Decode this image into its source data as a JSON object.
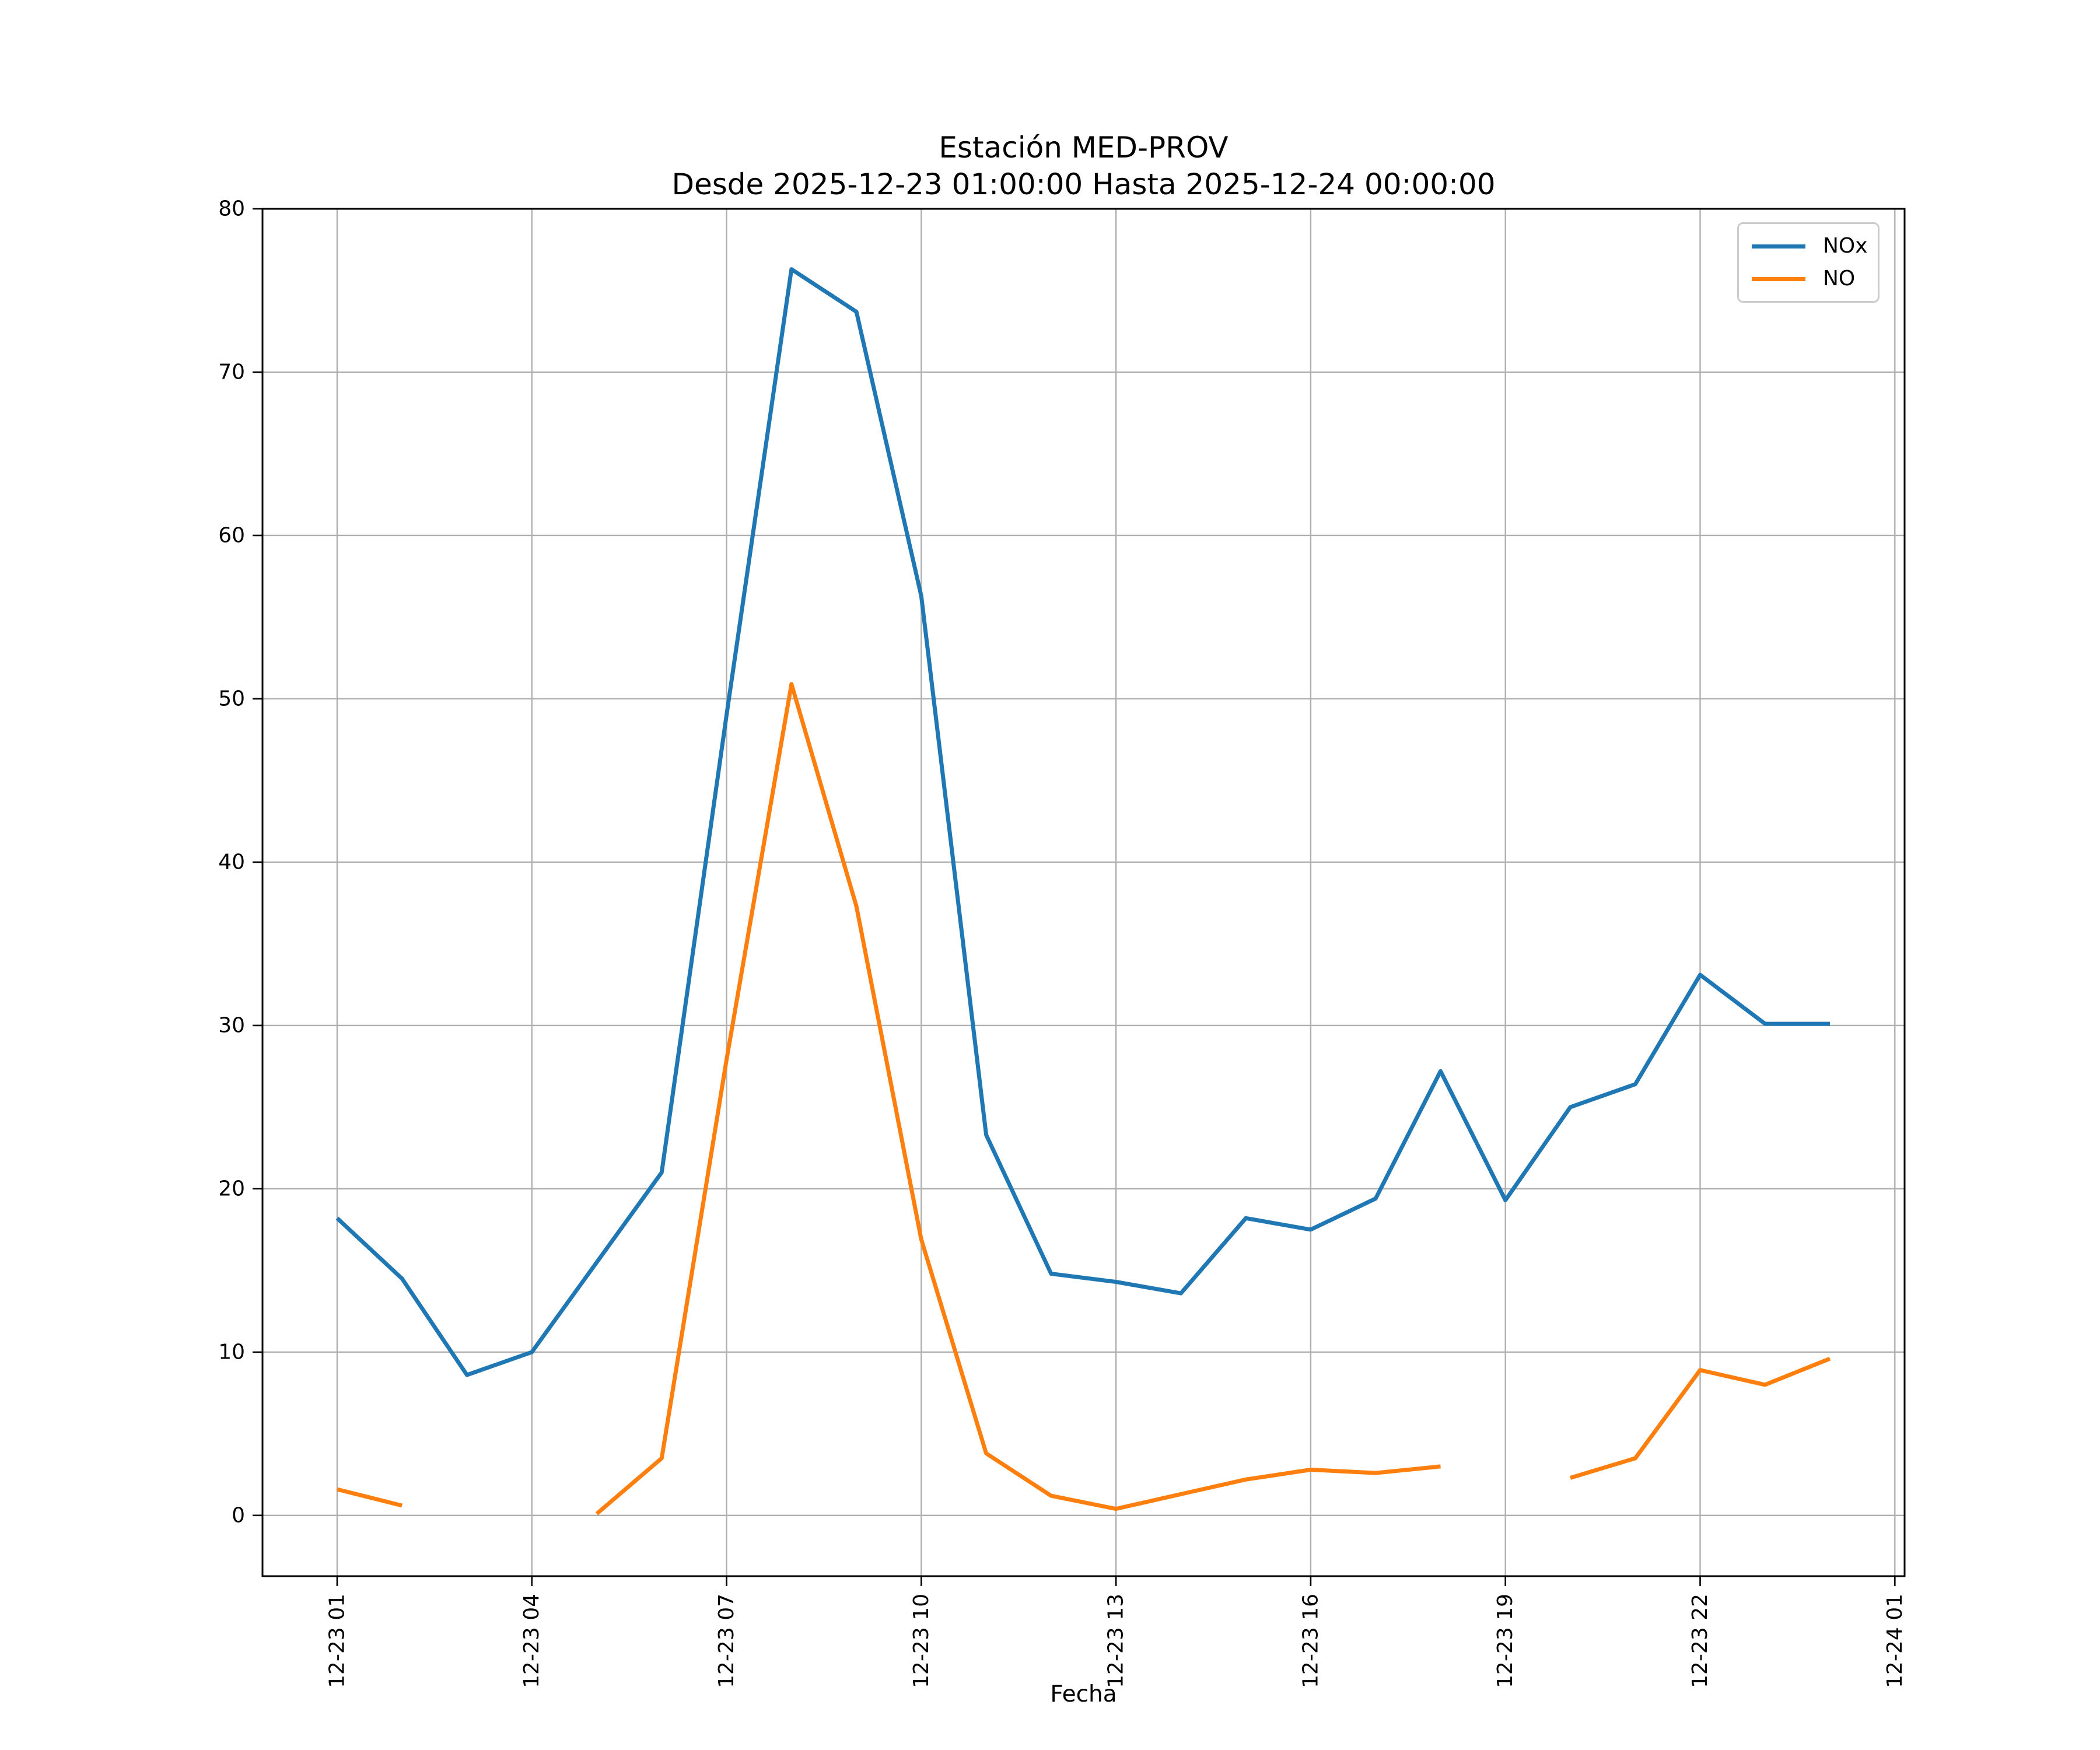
{
  "chart_data": {
    "type": "line",
    "title": "Estación MED-PROV",
    "subtitle": "Desde 2025-12-23 01:00:00 Hasta 2025-12-24 00:00:00",
    "xlabel": "Fecha",
    "ylabel": "",
    "x": [
      "12-23 01:00",
      "12-23 02:00",
      "12-23 03:00",
      "12-23 04:00",
      "12-23 05:00",
      "12-23 06:00",
      "12-23 07:00",
      "12-23 08:00",
      "12-23 09:00",
      "12-23 10:00",
      "12-23 11:00",
      "12-23 12:00",
      "12-23 13:00",
      "12-23 14:00",
      "12-23 15:00",
      "12-23 16:00",
      "12-23 17:00",
      "12-23 18:00",
      "12-23 19:00",
      "12-23 20:00",
      "12-23 21:00",
      "12-23 22:00",
      "12-23 23:00",
      "12-24 00:00"
    ],
    "series": [
      {
        "name": "NOx",
        "color": "#1f77b4",
        "values": [
          18.2,
          14.5,
          8.6,
          10.0,
          15.5,
          21.0,
          49.0,
          76.3,
          73.7,
          56.3,
          23.3,
          14.8,
          14.3,
          13.6,
          18.2,
          17.5,
          19.4,
          27.2,
          19.3,
          25.0,
          26.4,
          33.1,
          30.1,
          30.1
        ]
      },
      {
        "name": "NO",
        "color": "#ff7f0e",
        "values": [
          1.6,
          0.6,
          null,
          null,
          0.1,
          3.5,
          27.9,
          50.9,
          37.3,
          16.9,
          3.8,
          1.2,
          0.4,
          1.3,
          2.2,
          2.8,
          2.6,
          3.0,
          null,
          2.3,
          3.5,
          8.9,
          8.0,
          9.6
        ]
      }
    ],
    "xticks": {
      "positions": [
        0,
        3,
        6,
        9,
        12,
        15,
        18,
        21,
        24
      ],
      "labels": [
        "12-23 01",
        "12-23 04",
        "12-23 07",
        "12-23 10",
        "12-23 13",
        "12-23 16",
        "12-23 19",
        "12-23 22",
        "12-24 01"
      ]
    },
    "yticks": [
      0,
      10,
      20,
      30,
      40,
      50,
      60,
      70,
      80
    ],
    "xlim": [
      -1.15,
      24.15
    ],
    "ylim": [
      -3.72,
      80
    ],
    "grid": true,
    "grid_color": "#b0b0b0",
    "spine_color": "#000000",
    "legend": {
      "position": "upper right",
      "entries": [
        "NOx",
        "NO"
      ]
    }
  }
}
